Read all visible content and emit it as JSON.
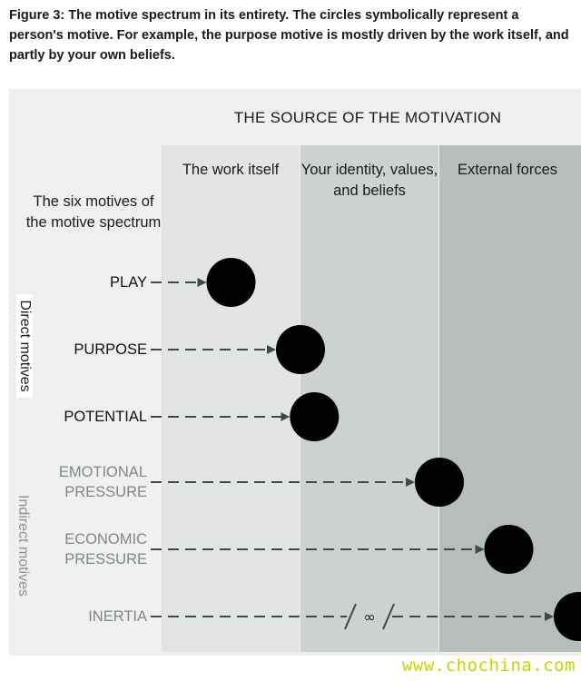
{
  "caption": "Figure 3: The motive spectrum in its entirety. The circles symbolically represent a person's motive. For example, the purpose motive is mostly driven by the work itself, and partly by your own beliefs.",
  "source_title": "THE SOURCE OF THE MOTIVATION",
  "columns": [
    "The work itself",
    "Your identity, values, and beliefs",
    "External forces"
  ],
  "six_motives_label": "The six motives of the motive spectrum",
  "group_labels": {
    "direct": "Direct motives",
    "indirect": "Indirect motives"
  },
  "motives": [
    {
      "label": "PLAY",
      "group": "direct",
      "position": 0.5
    },
    {
      "label": "PURPOSE",
      "group": "direct",
      "position": 1.0
    },
    {
      "label": "POTENTIAL",
      "group": "direct",
      "position": 1.1
    },
    {
      "label": "EMOTIONAL PRESSURE",
      "group": "indirect",
      "position": 2.0
    },
    {
      "label": "ECONOMIC PRESSURE",
      "group": "indirect",
      "position": 2.5
    },
    {
      "label": "INERTIA",
      "group": "indirect",
      "position": 3.0
    }
  ],
  "inertia_break_symbol": "∞",
  "watermark": "www.chochina.com",
  "colors": {
    "arrow": "#3d4a48",
    "circle": "#000000",
    "indirect_text": "#7d8888"
  }
}
